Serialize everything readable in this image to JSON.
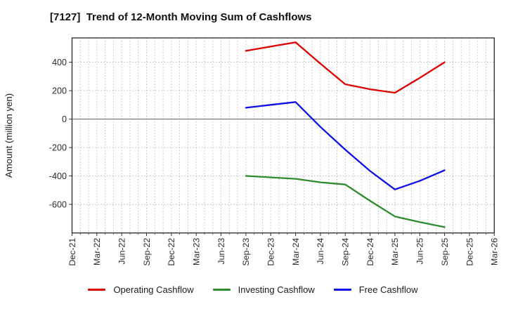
{
  "title": "[7127]  Trend of 12-Month Moving Sum of Cashflows",
  "y_axis": {
    "label": "Amount (million yen)",
    "ticks": [
      400,
      200,
      0,
      -200,
      -400,
      -600
    ]
  },
  "x_axis": {
    "ticks": [
      "Dec-21",
      "Mar-22",
      "Jun-22",
      "Sep-22",
      "Dec-22",
      "Mar-23",
      "Jun-23",
      "Sep-23",
      "Dec-23",
      "Mar-24",
      "Jun-24",
      "Sep-24",
      "Dec-24",
      "Mar-25",
      "Jun-25",
      "Sep-25",
      "Dec-25",
      "Mar-26"
    ]
  },
  "legend": [
    {
      "label": "Operating Cashflow",
      "color": "#dd0000"
    },
    {
      "label": "Investing Cashflow",
      "color": "#2e8b2e"
    },
    {
      "label": "Free Cashflow",
      "color": "#0f0fe8"
    }
  ],
  "colors": {
    "grid": "#b3b3b3",
    "zero_line": "#6e6e6e",
    "border": "#262626",
    "tick_text": "#2b2b2b"
  },
  "chart_data": {
    "type": "line",
    "title": "[7127]  Trend of 12-Month Moving Sum of Cashflows",
    "xlabel": "",
    "ylabel": "Amount (million yen)",
    "ylim": [
      -801,
      571
    ],
    "grid": "on",
    "legend_position": "bottom",
    "x_ticks": [
      "Dec-21",
      "Mar-22",
      "Jun-22",
      "Sep-22",
      "Dec-22",
      "Mar-23",
      "Jun-23",
      "Sep-23",
      "Dec-23",
      "Mar-24",
      "Jun-24",
      "Sep-24",
      "Dec-24",
      "Mar-25",
      "Jun-25",
      "Sep-25",
      "Dec-25",
      "Mar-26"
    ],
    "x": [
      "Sep-23",
      "Dec-23",
      "Mar-24",
      "Jun-24",
      "Sep-24",
      "Dec-24",
      "Mar-25",
      "Jun-25",
      "Sep-25"
    ],
    "series": [
      {
        "name": "Operating Cashflow",
        "color": "#dd0000",
        "values": [
          480,
          510,
          540,
          390,
          245,
          210,
          185,
          290,
          400
        ]
      },
      {
        "name": "Investing Cashflow",
        "color": "#2e8b2e",
        "values": [
          -400,
          -410,
          -420,
          -445,
          -460,
          -575,
          -685,
          -725,
          -760
        ]
      },
      {
        "name": "Free Cashflow",
        "color": "#0f0fe8",
        "values": [
          80,
          100,
          120,
          -55,
          -215,
          -365,
          -495,
          -435,
          -360
        ]
      }
    ]
  }
}
